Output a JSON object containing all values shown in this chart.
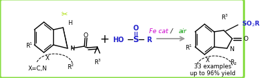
{
  "bg": "#ffffff",
  "border_color": "#88dd44",
  "border_lw": 2.2,
  "arrow_color": "#999999",
  "fe_cat_color": "#cc00cc",
  "air_color": "#009900",
  "blue_color": "#2222cc",
  "black": "#000000",
  "green_scissors": "#aadd00",
  "dark_gray": "#444444",
  "plus_text": "+",
  "xcn_text": "X=C,N",
  "examples_text": "33 examples",
  "yield_text": "up to 96% yield",
  "fe_cat_text": "Fe cat",
  "slash_text": " / ",
  "air_text": "air"
}
